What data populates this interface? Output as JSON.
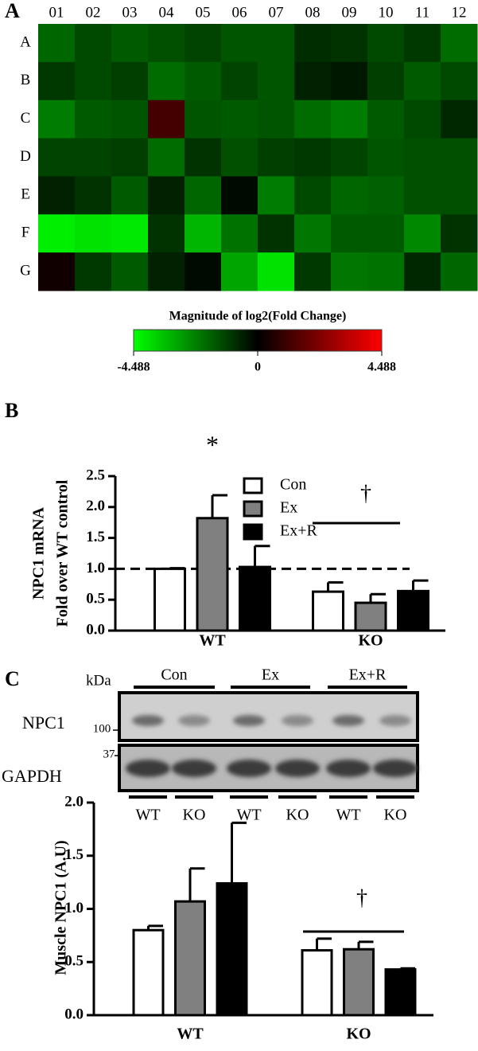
{
  "chart_data": [
    {
      "type": "heatmap",
      "panel": "A",
      "columns": [
        "01",
        "02",
        "03",
        "04",
        "05",
        "06",
        "07",
        "08",
        "09",
        "10",
        "11",
        "12"
      ],
      "rows": [
        "A",
        "B",
        "C",
        "D",
        "E",
        "F",
        "G"
      ],
      "values": [
        [
          -1.8,
          -1.3,
          -1.6,
          -1.4,
          -1.2,
          -1.5,
          -1.5,
          -0.8,
          -0.9,
          -1.3,
          -1.0,
          -1.9
        ],
        [
          -1.0,
          -1.3,
          -1.1,
          -1.9,
          -1.6,
          -1.2,
          -1.5,
          -0.6,
          -0.4,
          -1.1,
          -1.6,
          -1.3
        ],
        [
          -2.2,
          -1.6,
          -1.5,
          1.2,
          -1.5,
          -1.6,
          -1.5,
          -1.9,
          -2.2,
          -1.6,
          -1.3,
          -0.7
        ],
        [
          -1.2,
          -1.2,
          -1.1,
          -1.9,
          -0.9,
          -1.4,
          -1.1,
          -1.0,
          -1.2,
          -1.5,
          -1.4,
          -1.4
        ],
        [
          -0.6,
          -0.9,
          -1.6,
          -0.6,
          -1.8,
          -0.2,
          -2.2,
          -1.3,
          -1.8,
          -1.7,
          -1.4,
          -1.4
        ],
        [
          -4.2,
          -4.0,
          -4.1,
          -0.9,
          -3.2,
          -2.0,
          -0.9,
          -2.1,
          -1.6,
          -1.6,
          -2.4,
          -0.9
        ],
        [
          0.3,
          -1.0,
          -1.6,
          -0.6,
          -0.2,
          -2.9,
          -4.0,
          -1.0,
          -2.1,
          -2.0,
          -0.7,
          -1.8
        ]
      ],
      "colorbar": {
        "title": "Magnitude of log2(Fold Change)",
        "clim": [
          -4.488,
          4.488
        ],
        "ticks": [
          -4.488,
          0,
          4.488
        ],
        "colors": [
          "#00ff00",
          "#000000",
          "#ff0000"
        ]
      }
    },
    {
      "type": "bar",
      "panel": "B",
      "ylabel": [
        "NPC1 mRNA",
        "Fold over WT control"
      ],
      "categories": [
        "WT",
        "KO"
      ],
      "series": [
        {
          "name": "Con",
          "color": "#ffffff",
          "values": [
            1.0,
            0.63
          ],
          "errors": [
            0.01,
            0.15
          ]
        },
        {
          "name": "Ex",
          "color": "#808080",
          "values": [
            1.82,
            0.45
          ],
          "errors": [
            0.37,
            0.14
          ]
        },
        {
          "name": "Ex+R",
          "color": "#000000",
          "values": [
            1.03,
            0.64
          ],
          "errors": [
            0.34,
            0.17
          ]
        }
      ],
      "ylim": [
        0,
        2.5
      ],
      "yticks": [
        {
          "value": 0,
          "label": "0.0"
        },
        0.5,
        {
          "value": 1,
          "label": "1.0"
        },
        1.5,
        {
          "value": 2,
          "label": "2.0"
        },
        2.5
      ],
      "reference_line": 1,
      "annotations": [
        "*",
        "†"
      ]
    },
    {
      "type": "bar",
      "ylabel": [
        "Muscle NPC1 (A.U)"
      ],
      "categories": [
        "WT",
        "KO"
      ],
      "series": [
        {
          "color": "#ffffff",
          "values": [
            0.8,
            0.61
          ],
          "errors": [
            0.04,
            0.11
          ]
        },
        {
          "color": "#808080",
          "values": [
            1.07,
            0.62
          ],
          "errors": [
            0.31,
            0.07
          ]
        },
        {
          "color": "#000000",
          "values": [
            1.24,
            0.43
          ],
          "errors": [
            0.57,
            0.01
          ]
        }
      ],
      "ylim": [
        0,
        2
      ],
      "yticks": [
        {
          "value": 0,
          "label": "0.0"
        },
        0.5,
        {
          "value": 1,
          "label": "1.0"
        },
        1.5,
        {
          "value": 2,
          "label": "2.0"
        }
      ],
      "annotations": [
        "†"
      ]
    }
  ],
  "blot": {
    "panel": "C",
    "unit": "kDa",
    "groups": [
      "Con",
      "Ex",
      "Ex+R"
    ],
    "rows": [
      {
        "label": "NPC1",
        "marker": "100"
      },
      {
        "label": "GAPDH",
        "marker": "37"
      }
    ],
    "lanes": [
      "WT",
      "KO",
      "WT",
      "KO",
      "WT",
      "KO"
    ]
  }
}
